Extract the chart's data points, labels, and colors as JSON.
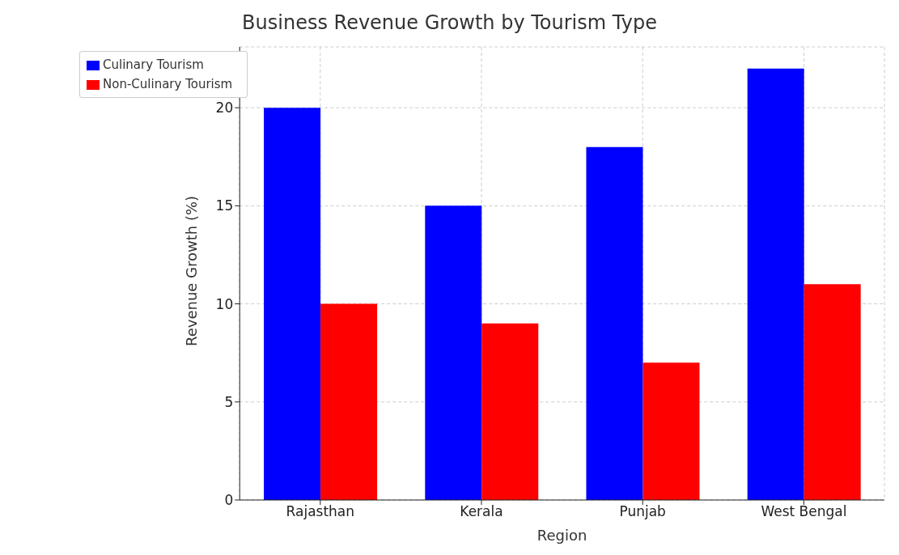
{
  "chart_data": {
    "type": "bar",
    "title": "Business Revenue Growth by Tourism Type",
    "xlabel": "Region",
    "ylabel": "Revenue Growth (%)",
    "categories": [
      "Rajasthan",
      "Kerala",
      "Punjab",
      "West Bengal"
    ],
    "series": [
      {
        "name": "Culinary Tourism",
        "color": "#0000ff",
        "values": [
          20,
          15,
          18,
          22
        ]
      },
      {
        "name": "Non-Culinary Tourism",
        "color": "#ff0000",
        "values": [
          10,
          9,
          7,
          11
        ]
      }
    ],
    "ylim": [
      0,
      23.1
    ],
    "yticks": [
      0,
      5,
      10,
      15,
      20
    ],
    "grid": true,
    "legend": "top left"
  }
}
